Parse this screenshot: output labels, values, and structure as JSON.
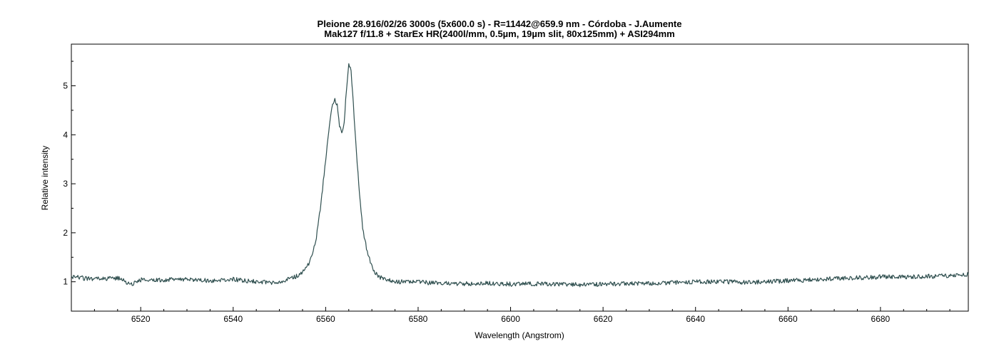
{
  "chart_data": {
    "type": "line",
    "title": "Pleione  28.916/02/26 3000s (5x600.0 s) - R=11442@659.9 nm - Córdoba - J.Aumente",
    "subtitle": "Mak127 f/11.8 + StarEx HR(2400l/mm, 0.5µm, 19µm slit, 80x125mm) + ASI294mm",
    "xlabel": "Wavelength (Angstrom)",
    "ylabel": "Relative intensity",
    "xlim": [
      6505,
      6699
    ],
    "ylim": [
      0.4,
      5.85
    ],
    "x_ticks": [
      6520,
      6540,
      6560,
      6580,
      6600,
      6620,
      6640,
      6660,
      6680
    ],
    "y_ticks": [
      1,
      2,
      3,
      4,
      5
    ],
    "x_tick_labels": [
      "6520",
      "6540",
      "6560",
      "6580",
      "6600",
      "6620",
      "6640",
      "6660",
      "6680"
    ],
    "y_tick_labels": [
      "1",
      "2",
      "3",
      "4",
      "5"
    ],
    "grid": false,
    "legend": "none",
    "line_color": "#2f4f4f",
    "series": [
      {
        "x": [
          6505,
          6510,
          6515,
          6518,
          6520,
          6525,
          6530,
          6535,
          6540,
          6545,
          6548,
          6550,
          6552,
          6554,
          6555,
          6556,
          6557,
          6558,
          6559,
          6560,
          6561,
          6561.5,
          6562,
          6562.5,
          6563,
          6563.5,
          6564,
          6564.5,
          6565,
          6565.5,
          6566,
          6566.5,
          6567,
          6567.5,
          6568,
          6569,
          6570,
          6571,
          6572,
          6574,
          6576,
          6580,
          6585,
          6590,
          6595,
          6600,
          6605,
          6610,
          6615,
          6620,
          6625,
          6630,
          6635,
          6640,
          6645,
          6650,
          6655,
          6660,
          6665,
          6670,
          6675,
          6680,
          6685,
          6690,
          6695,
          6699
        ],
        "y": [
          1.1,
          1.05,
          1.08,
          0.95,
          1.04,
          1.03,
          1.06,
          1.02,
          1.05,
          1.0,
          0.98,
          1.0,
          1.05,
          1.12,
          1.2,
          1.3,
          1.5,
          1.9,
          2.6,
          3.5,
          4.3,
          4.65,
          4.7,
          4.6,
          4.2,
          4.05,
          4.25,
          4.9,
          5.45,
          5.3,
          4.6,
          3.9,
          3.2,
          2.6,
          2.1,
          1.6,
          1.3,
          1.15,
          1.08,
          1.02,
          1.0,
          0.99,
          0.97,
          0.96,
          0.97,
          0.95,
          0.96,
          0.95,
          0.94,
          0.95,
          0.96,
          0.97,
          0.98,
          1.0,
          1.0,
          0.99,
          1.0,
          1.02,
          1.04,
          1.07,
          1.08,
          1.1,
          1.1,
          1.11,
          1.12,
          1.15
        ]
      }
    ]
  }
}
